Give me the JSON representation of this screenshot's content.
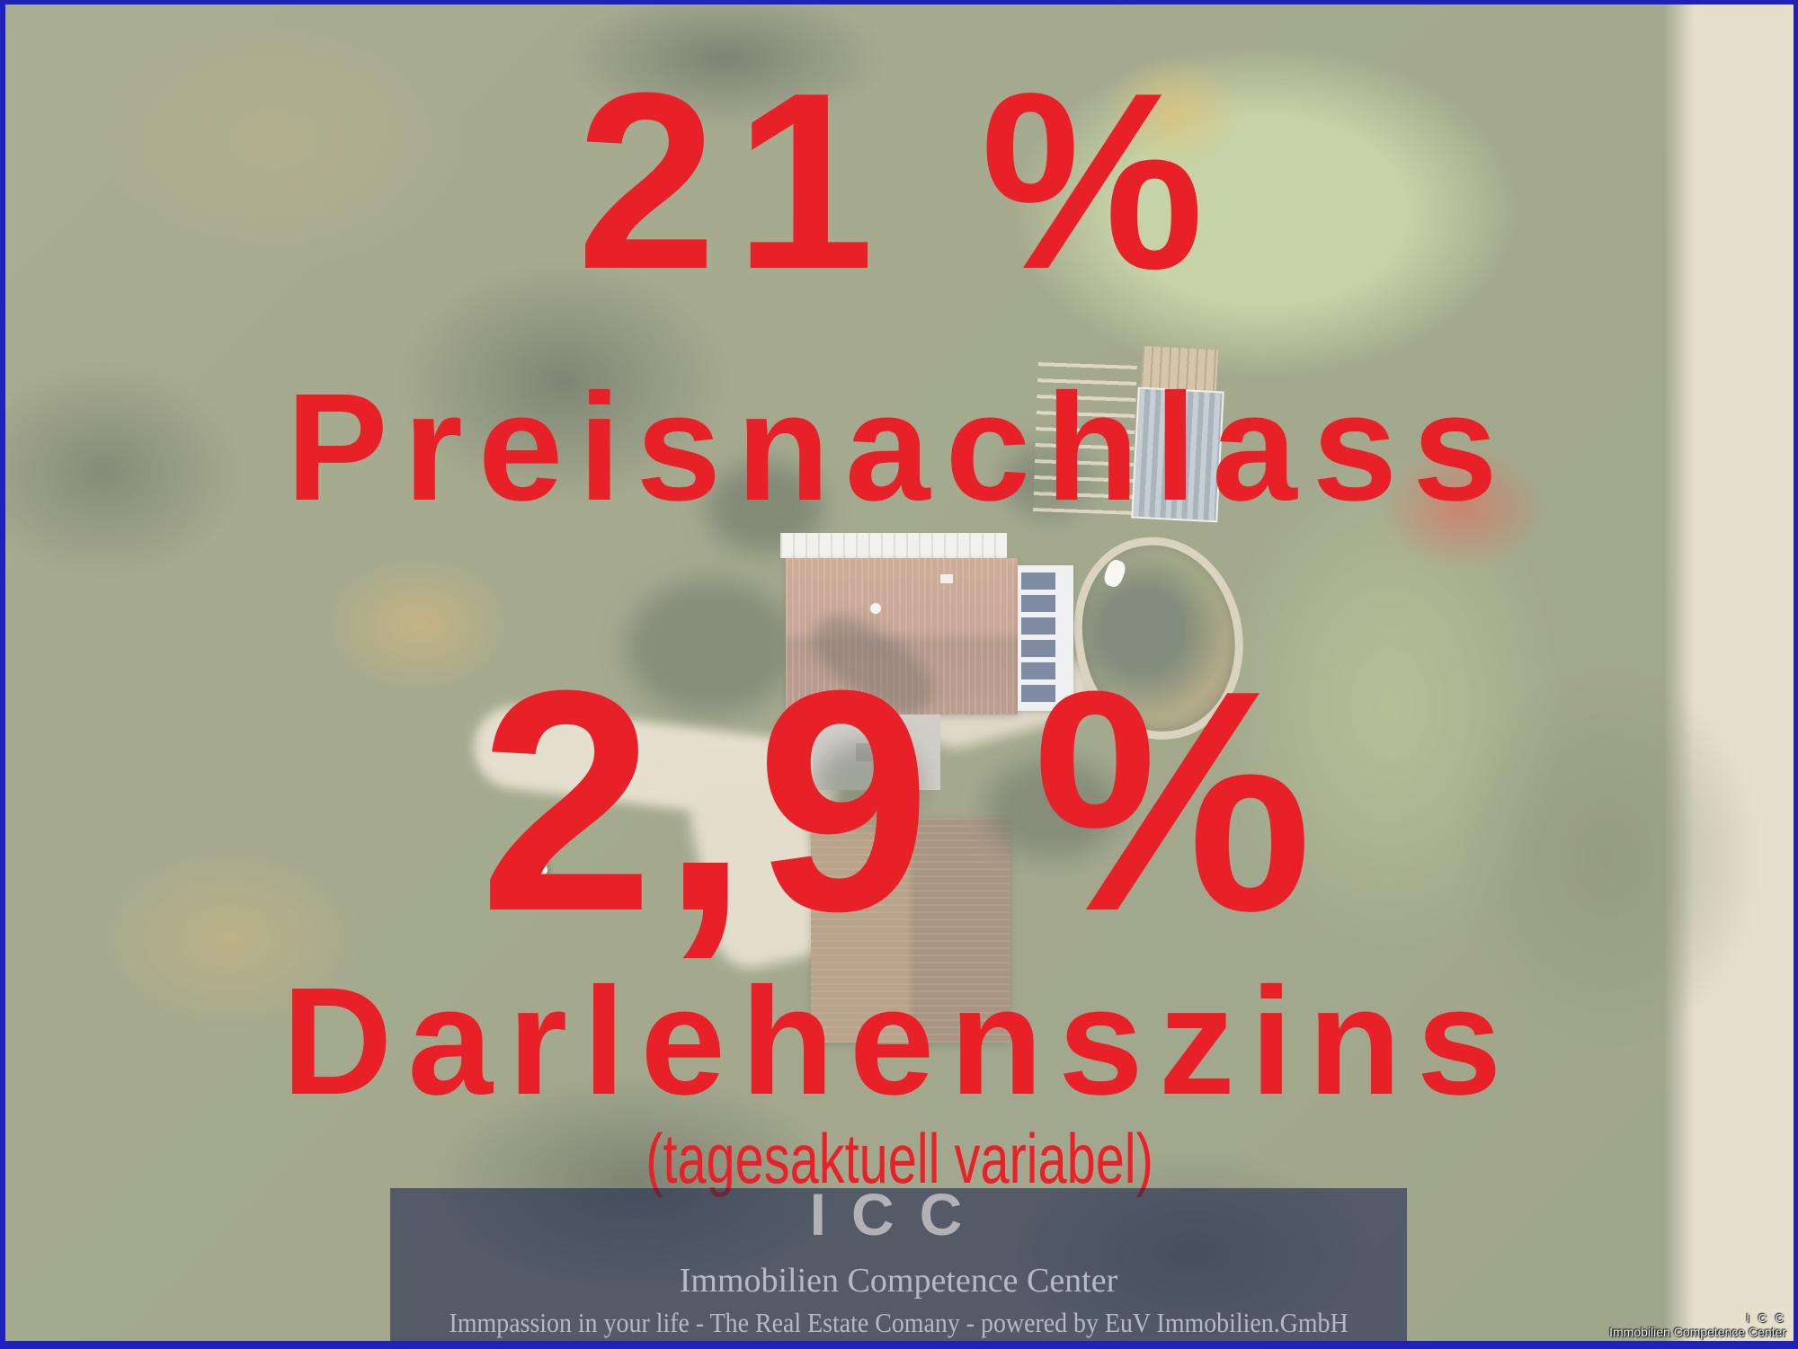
{
  "colors": {
    "accent_red": "#e82027",
    "border_blue": "#2020bb",
    "banner_overlay": "rgba(30,40,78,0.60)",
    "logo_grey": "#b2b1b6",
    "banner_text": "#b6bac6",
    "watermark_white": "#f2f2f2"
  },
  "headline": {
    "discount_value": "21 %",
    "discount_label": "Preisnachlass",
    "interest_value": "2,9 %",
    "interest_label": "Darlehenszins",
    "interest_note": "(tagesaktuell variabel)"
  },
  "banner": {
    "logo": "ICC",
    "company": "Immobilien Competence Center",
    "tagline": "Immpassion in your life  - The Real Estate Comany - powered by EuV Immobilien.GmbH"
  },
  "watermark": {
    "line1": "I C C",
    "line2": "Immobilien Competence Center"
  }
}
